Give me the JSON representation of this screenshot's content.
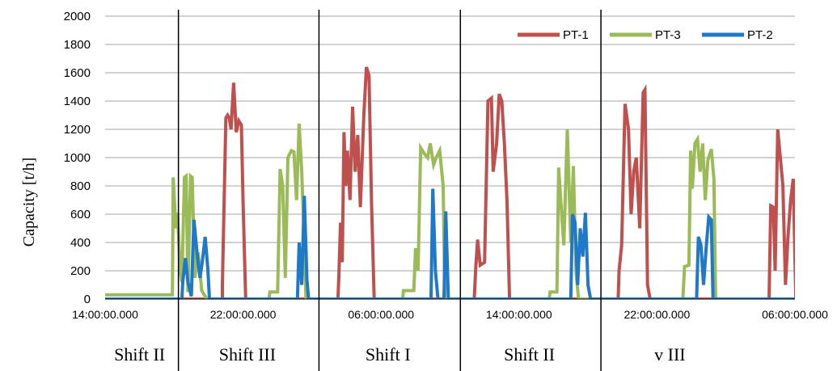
{
  "chart_data": {
    "type": "line",
    "ylabel": "Capacity [t/h]",
    "ylim": [
      0,
      2000
    ],
    "yticks": [
      0,
      200,
      400,
      600,
      800,
      1000,
      1200,
      1400,
      1600,
      1800,
      2000
    ],
    "xlim": [
      0,
      80
    ],
    "x_unit": "hours from first tick",
    "xticks": [
      {
        "x": 0,
        "label": "14:00:00.000"
      },
      {
        "x": 16,
        "label": "22:00:00.000"
      },
      {
        "x": 32,
        "label": "06:00:00.000"
      },
      {
        "x": 48,
        "label": "14:00:00.000"
      },
      {
        "x": 64,
        "label": "22:00:00.000"
      },
      {
        "x": 80,
        "label": "06:00:00.000"
      }
    ],
    "grid": true,
    "legend_position": "top-right",
    "shift_dividers": [
      8.5,
      24.8,
      41.2,
      57.5
    ],
    "shift_labels": [
      {
        "x": 4,
        "label": "Shift II"
      },
      {
        "x": 16.5,
        "label": "Shift III"
      },
      {
        "x": 32.8,
        "label": "Shift I"
      },
      {
        "x": 49.2,
        "label": "Shift II"
      },
      {
        "x": 65.5,
        "label": "v III"
      }
    ],
    "series": [
      {
        "name": "PT-1",
        "color": "#C0504D",
        "points": [
          [
            -4,
            0
          ],
          [
            13.6,
            0
          ],
          [
            13.6,
            100
          ],
          [
            14.0,
            1280
          ],
          [
            14.2,
            1300
          ],
          [
            14.4,
            1280
          ],
          [
            14.6,
            1200
          ],
          [
            14.9,
            1530
          ],
          [
            15.2,
            1180
          ],
          [
            15.5,
            1260
          ],
          [
            15.8,
            1230
          ],
          [
            16.0,
            680
          ],
          [
            16.3,
            0
          ],
          [
            27.0,
            0
          ],
          [
            27.1,
            160
          ],
          [
            27.3,
            540
          ],
          [
            27.5,
            260
          ],
          [
            27.7,
            1180
          ],
          [
            27.9,
            800
          ],
          [
            28.1,
            1050
          ],
          [
            28.4,
            700
          ],
          [
            28.7,
            1360
          ],
          [
            29.0,
            900
          ],
          [
            29.3,
            1160
          ],
          [
            29.6,
            650
          ],
          [
            30.0,
            1300
          ],
          [
            30.3,
            1640
          ],
          [
            30.6,
            1580
          ],
          [
            30.9,
            660
          ],
          [
            31.2,
            0
          ],
          [
            42.8,
            0
          ],
          [
            43.0,
            240
          ],
          [
            43.2,
            420
          ],
          [
            43.5,
            240
          ],
          [
            44.0,
            260
          ],
          [
            44.4,
            1400
          ],
          [
            44.8,
            1420
          ],
          [
            45.0,
            900
          ],
          [
            45.4,
            1100
          ],
          [
            45.7,
            1450
          ],
          [
            46.0,
            1400
          ],
          [
            46.3,
            1100
          ],
          [
            46.6,
            700
          ],
          [
            46.9,
            0
          ],
          [
            59.5,
            0
          ],
          [
            59.6,
            200
          ],
          [
            59.9,
            380
          ],
          [
            60.3,
            1380
          ],
          [
            60.7,
            1200
          ],
          [
            61.0,
            600
          ],
          [
            61.3,
            900
          ],
          [
            61.6,
            1000
          ],
          [
            62.0,
            500
          ],
          [
            62.4,
            1460
          ],
          [
            62.6,
            1480
          ],
          [
            62.9,
            100
          ],
          [
            63.2,
            0
          ],
          [
            77.0,
            0
          ],
          [
            77.2,
            660
          ],
          [
            77.5,
            650
          ],
          [
            77.7,
            200
          ],
          [
            78.0,
            1200
          ],
          [
            78.3,
            1000
          ],
          [
            78.6,
            800
          ],
          [
            78.9,
            100
          ],
          [
            79.2,
            450
          ],
          [
            79.5,
            700
          ],
          [
            79.8,
            850
          ],
          [
            80.1,
            0
          ],
          [
            84,
            0
          ]
        ]
      },
      {
        "name": "PT-3",
        "color": "#9BBB59",
        "points": [
          [
            -4,
            30
          ],
          [
            7.8,
            30
          ],
          [
            7.9,
            860
          ],
          [
            8.2,
            500
          ],
          [
            8.4,
            610
          ],
          [
            8.7,
            200
          ],
          [
            8.9,
            120
          ],
          [
            9.2,
            860
          ],
          [
            9.4,
            870
          ],
          [
            9.6,
            50
          ],
          [
            9.9,
            870
          ],
          [
            10.1,
            860
          ],
          [
            10.4,
            150
          ],
          [
            10.8,
            330
          ],
          [
            11.2,
            60
          ],
          [
            11.8,
            0
          ],
          [
            19.0,
            0
          ],
          [
            19.1,
            50
          ],
          [
            20.0,
            50
          ],
          [
            20.3,
            920
          ],
          [
            20.6,
            800
          ],
          [
            20.9,
            150
          ],
          [
            21.2,
            1000
          ],
          [
            21.6,
            1050
          ],
          [
            21.9,
            1040
          ],
          [
            22.2,
            700
          ],
          [
            22.5,
            1240
          ],
          [
            22.8,
            900
          ],
          [
            23.1,
            400
          ],
          [
            23.3,
            0
          ],
          [
            34.5,
            0
          ],
          [
            34.6,
            60
          ],
          [
            35.8,
            60
          ],
          [
            36.0,
            360
          ],
          [
            36.3,
            200
          ],
          [
            36.6,
            1070
          ],
          [
            37.0,
            1030
          ],
          [
            37.4,
            1000
          ],
          [
            37.7,
            1100
          ],
          [
            38.1,
            950
          ],
          [
            38.4,
            1000
          ],
          [
            38.8,
            1050
          ],
          [
            39.2,
            800
          ],
          [
            39.4,
            0
          ],
          [
            51.5,
            0
          ],
          [
            51.6,
            50
          ],
          [
            52.4,
            50
          ],
          [
            52.6,
            930
          ],
          [
            52.9,
            650
          ],
          [
            53.2,
            380
          ],
          [
            53.6,
            1200
          ],
          [
            54.0,
            400
          ],
          [
            54.3,
            940
          ],
          [
            54.6,
            200
          ],
          [
            54.9,
            0
          ],
          [
            67.0,
            0
          ],
          [
            67.2,
            230
          ],
          [
            67.7,
            240
          ],
          [
            67.9,
            1050
          ],
          [
            68.1,
            780
          ],
          [
            68.4,
            1100
          ],
          [
            68.7,
            1130
          ],
          [
            69.0,
            900
          ],
          [
            69.3,
            1100
          ],
          [
            69.6,
            700
          ],
          [
            69.9,
            980
          ],
          [
            70.3,
            1060
          ],
          [
            70.6,
            850
          ],
          [
            70.8,
            0
          ],
          [
            84,
            0
          ]
        ]
      },
      {
        "name": "PT-2",
        "color": "#1F78C8",
        "points": [
          [
            -4,
            0
          ],
          [
            8.9,
            0
          ],
          [
            9.0,
            120
          ],
          [
            9.3,
            290
          ],
          [
            9.6,
            120
          ],
          [
            10.0,
            20
          ],
          [
            10.3,
            560
          ],
          [
            10.7,
            300
          ],
          [
            11.0,
            150
          ],
          [
            11.3,
            280
          ],
          [
            11.6,
            440
          ],
          [
            11.9,
            220
          ],
          [
            12.1,
            0
          ],
          [
            22.3,
            0
          ],
          [
            22.5,
            400
          ],
          [
            22.8,
            100
          ],
          [
            23.1,
            730
          ],
          [
            23.4,
            140
          ],
          [
            23.6,
            0
          ],
          [
            37.8,
            0
          ],
          [
            38.0,
            780
          ],
          [
            38.3,
            200
          ],
          [
            38.6,
            0
          ],
          [
            39.3,
            0
          ],
          [
            39.5,
            620
          ],
          [
            39.8,
            0
          ],
          [
            54.0,
            0
          ],
          [
            54.2,
            600
          ],
          [
            54.5,
            540
          ],
          [
            54.8,
            100
          ],
          [
            55.1,
            500
          ],
          [
            55.4,
            300
          ],
          [
            55.7,
            610
          ],
          [
            56.0,
            100
          ],
          [
            56.3,
            0
          ],
          [
            68.6,
            0
          ],
          [
            68.8,
            440
          ],
          [
            69.1,
            380
          ],
          [
            69.4,
            100
          ],
          [
            69.7,
            360
          ],
          [
            70.0,
            580
          ],
          [
            70.3,
            560
          ],
          [
            70.5,
            0
          ],
          [
            84,
            0
          ]
        ]
      }
    ]
  }
}
